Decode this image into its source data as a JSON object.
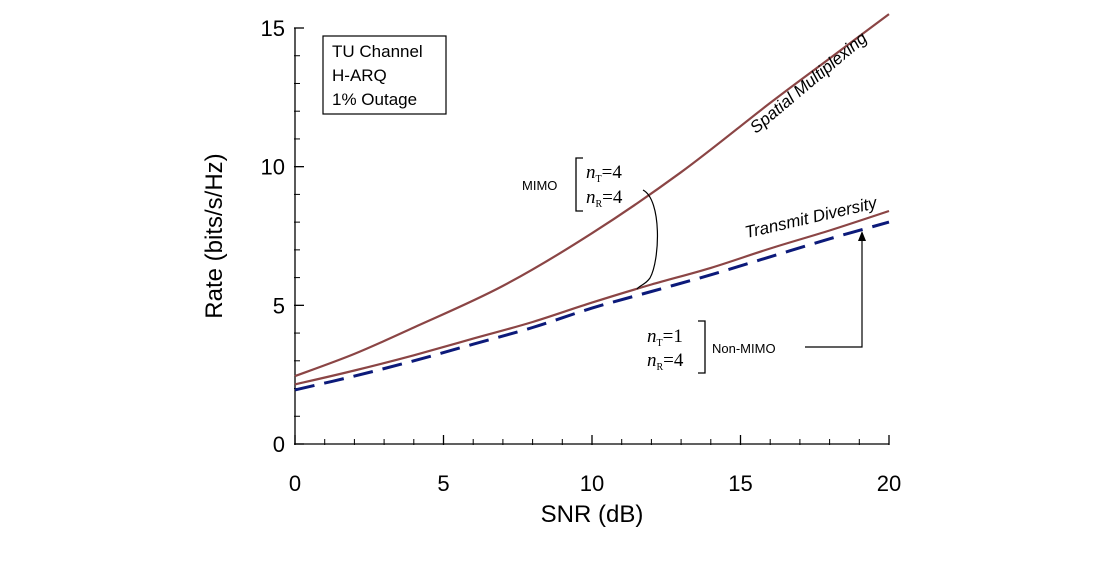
{
  "chart_data": {
    "type": "line",
    "title": "",
    "xlabel": "SNR (dB)",
    "ylabel": "Rate (bits/s/Hz)",
    "xlim": [
      0,
      20
    ],
    "ylim": [
      0,
      15
    ],
    "x_ticks": [
      "0",
      "5",
      "10",
      "15",
      "20"
    ],
    "y_ticks": [
      "0",
      "5",
      "10",
      "15"
    ],
    "grid": false,
    "legend_box": [
      "TU Channel",
      "H-ARQ",
      "1% Outage"
    ],
    "series": [
      {
        "name": "Spatial Multiplexing",
        "color": "#8b4545",
        "style": "solid",
        "x": [
          0,
          2,
          4,
          7,
          10,
          13,
          16,
          18,
          20
        ],
        "y": [
          2.45,
          3.25,
          4.2,
          5.7,
          7.6,
          9.8,
          12.3,
          13.9,
          15.5
        ]
      },
      {
        "name": "Transmit Diversity",
        "color": "#8b4545",
        "style": "solid",
        "x": [
          0,
          2,
          4,
          6,
          8,
          10,
          12,
          14,
          16,
          18,
          20
        ],
        "y": [
          2.15,
          2.65,
          3.2,
          3.8,
          4.4,
          5.1,
          5.75,
          6.35,
          7.05,
          7.7,
          8.4
        ]
      },
      {
        "name": "Non-MIMO",
        "color": "#0c1a7a",
        "style": "dashed",
        "x": [
          0,
          2,
          4,
          6,
          8,
          10,
          12,
          14,
          16,
          18,
          20
        ],
        "y": [
          1.95,
          2.45,
          3.0,
          3.6,
          4.2,
          4.9,
          5.5,
          6.1,
          6.75,
          7.4,
          8.0
        ]
      }
    ],
    "annotations": {
      "spatial_label": "Spatial Multiplexing",
      "transmit_label": "Transmit Diversity",
      "mimo": {
        "label": "MIMO",
        "nt": "=4",
        "nr": "=4"
      },
      "non_mimo": {
        "label": "Non-MIMO",
        "nt": "=1",
        "nr": "=4"
      },
      "n_symbol": "n",
      "t_sub": "T",
      "r_sub": "R"
    }
  }
}
